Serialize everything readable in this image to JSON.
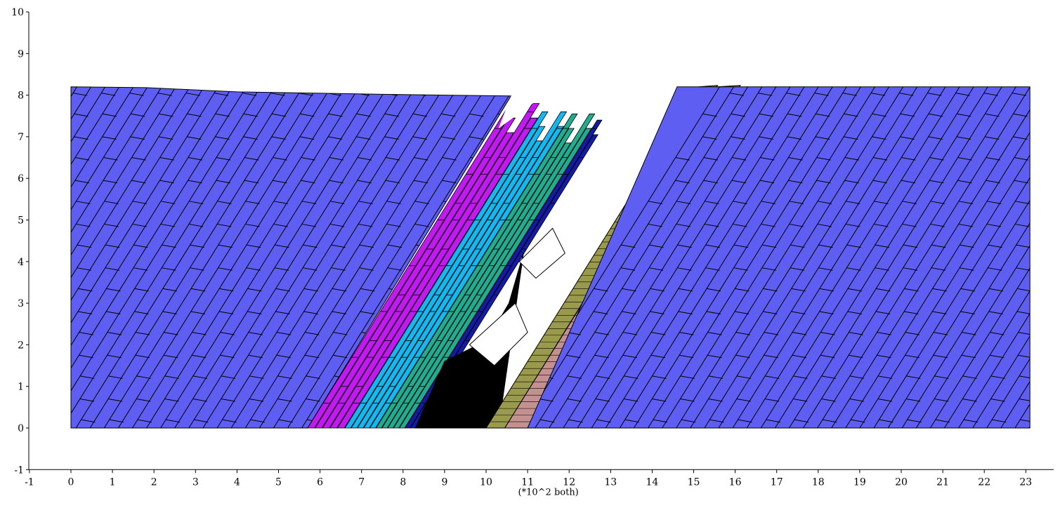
{
  "axes": {
    "x": {
      "min": -1,
      "max": 23.5,
      "ticks": [
        -1,
        0,
        1,
        2,
        3,
        4,
        5,
        6,
        7,
        8,
        9,
        10,
        11,
        12,
        13,
        14,
        15,
        16,
        17,
        18,
        19,
        20,
        21,
        22,
        23
      ]
    },
    "y": {
      "min": -1,
      "max": 10,
      "ticks": [
        -1,
        0,
        1,
        2,
        3,
        4,
        5,
        6,
        7,
        8,
        9,
        10
      ]
    },
    "unit_note": "(*10^2 both)"
  },
  "colors": {
    "rock": "#5e5ef2",
    "magenta": "#c218f2",
    "cyan": "#14b8f0",
    "green": "#21ab8f",
    "navy": "#141aa6",
    "olive": "#9a9a4c",
    "pink": "#c49090",
    "rubble": "#000000",
    "outline": "#000000"
  },
  "model": {
    "left_block_top": [
      [
        0,
        8.2
      ],
      [
        1.8,
        8.18
      ],
      [
        4,
        8.08
      ],
      [
        7.5,
        8.02
      ],
      [
        10.6,
        7.98
      ]
    ],
    "left_block_base_right": 5.7,
    "right_block_x": [
      14.6,
      23.1
    ],
    "right_block_base_left": 11,
    "top": 8.2
  }
}
